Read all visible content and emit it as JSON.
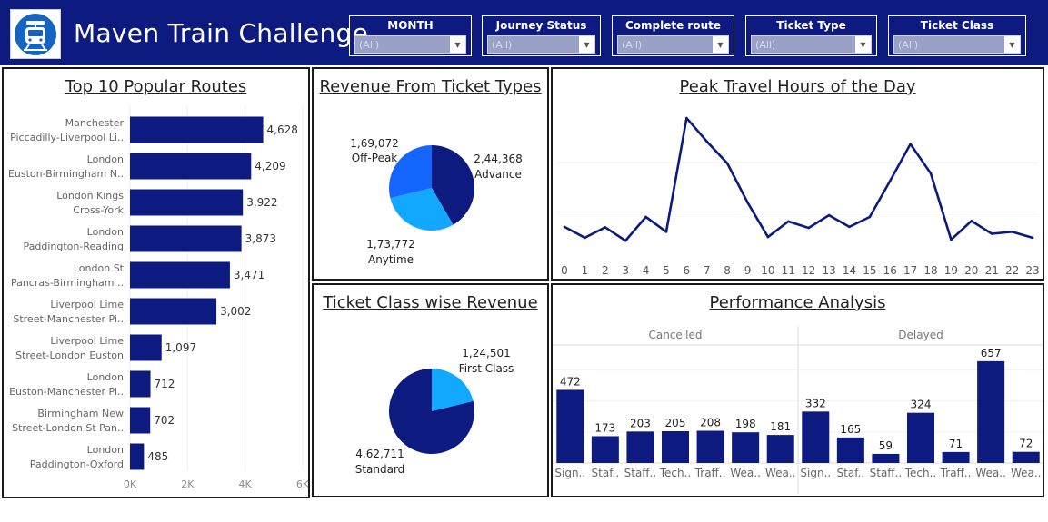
{
  "header": {
    "title": "Maven Train Challenge",
    "logo_icon": "train-icon",
    "background": "#0d1a80",
    "filters": [
      {
        "label": "MONTH",
        "value": "(All)"
      },
      {
        "label": "Journey Status",
        "value": "(All)"
      },
      {
        "label": "Complete route",
        "value": "(All)"
      },
      {
        "label": "Ticket Type",
        "value": "(All)"
      },
      {
        "label": "Ticket Class",
        "value": "(All)"
      }
    ]
  },
  "colors": {
    "navy": "#0d1a80",
    "blue": "#1565ff",
    "light_blue": "#12a8ff"
  },
  "chart_data": [
    {
      "type": "bar",
      "orientation": "horizontal",
      "title": "Top 10 Popular Routes",
      "categories": [
        [
          "Manchester",
          "Piccadilly-Liverpool Li.."
        ],
        [
          "London",
          "Euston-Birmingham N.."
        ],
        [
          "London Kings",
          "Cross-York"
        ],
        [
          "London",
          "Paddington-Reading"
        ],
        [
          "London St",
          "Pancras-Birmingham .."
        ],
        [
          "Liverpool Lime",
          "Street-Manchester Pi.."
        ],
        [
          "Liverpool Lime",
          "Street-London Euston"
        ],
        [
          "London",
          "Euston-Manchester Pi.."
        ],
        [
          "Birmingham New",
          "Street-London St Pan.."
        ],
        [
          "London",
          "Paddington-Oxford"
        ]
      ],
      "values": [
        4628,
        4209,
        3922,
        3873,
        3471,
        3002,
        1097,
        712,
        702,
        485
      ],
      "value_labels": [
        "4,628",
        "4,209",
        "3,922",
        "3,873",
        "3,471",
        "3,002",
        "1,097",
        "712",
        "702",
        "485"
      ],
      "xlim": [
        0,
        6000
      ],
      "xticks": [
        0,
        2000,
        4000,
        6000
      ],
      "xtick_labels": [
        "0K",
        "2K",
        "4K",
        "6K"
      ]
    },
    {
      "type": "pie",
      "title": "Revenue From Ticket Types",
      "slices": [
        {
          "name": "Advance",
          "value": 244368,
          "label": "2,44,368",
          "color": "#0d1a80"
        },
        {
          "name": "Anytime",
          "value": 173772,
          "label": "1,73,772",
          "color": "#12a8ff"
        },
        {
          "name": "Off-Peak",
          "value": 169072,
          "label": "1,69,072",
          "color": "#1565ff"
        }
      ]
    },
    {
      "type": "pie",
      "title": "Ticket Class wise Revenue",
      "slices": [
        {
          "name": "First Class",
          "value": 124501,
          "label": "1,24,501",
          "color": "#12a8ff"
        },
        {
          "name": "Standard",
          "value": 462711,
          "label": "4,62,711",
          "color": "#0d1a80"
        }
      ]
    },
    {
      "type": "line",
      "title": "Peak Travel Hours of the Day",
      "x": [
        0,
        1,
        2,
        3,
        4,
        5,
        6,
        7,
        8,
        9,
        10,
        11,
        12,
        13,
        14,
        15,
        16,
        17,
        18,
        19,
        20,
        21,
        22,
        23
      ],
      "x_labels": [
        "0",
        "1",
        "2",
        "3",
        "4",
        "5",
        "6",
        "7",
        "8",
        "9",
        "10",
        "11",
        "12",
        "13",
        "14",
        "15",
        "16",
        "17",
        "18",
        "19",
        "20",
        "21",
        "22",
        "23"
      ],
      "values": [
        1400,
        960,
        1380,
        840,
        1800,
        1200,
        5800,
        4850,
        3970,
        2380,
        990,
        1620,
        1360,
        1870,
        1400,
        1800,
        3260,
        4750,
        3560,
        880,
        1640,
        1120,
        1200,
        960
      ],
      "ylim": [
        0,
        6500
      ],
      "gridlines": [
        2000,
        4000
      ]
    },
    {
      "type": "bar",
      "title": "Performance Analysis",
      "panels": [
        {
          "name": "Cancelled",
          "categories": [
            "Sign..",
            "Staf..",
            "Staff..",
            "Tech..",
            "Traff..",
            "Wea..",
            "Wea.."
          ],
          "values": [
            472,
            173,
            203,
            205,
            208,
            198,
            181
          ]
        },
        {
          "name": "Delayed",
          "categories": [
            "Sign..",
            "Staf..",
            "Staff..",
            "Tech..",
            "Traff..",
            "Wea..",
            "Wea.."
          ],
          "values": [
            332,
            165,
            59,
            324,
            71,
            657,
            72
          ]
        }
      ],
      "ylim": [
        0,
        750
      ],
      "gridlines": [
        200,
        400,
        600
      ]
    }
  ]
}
